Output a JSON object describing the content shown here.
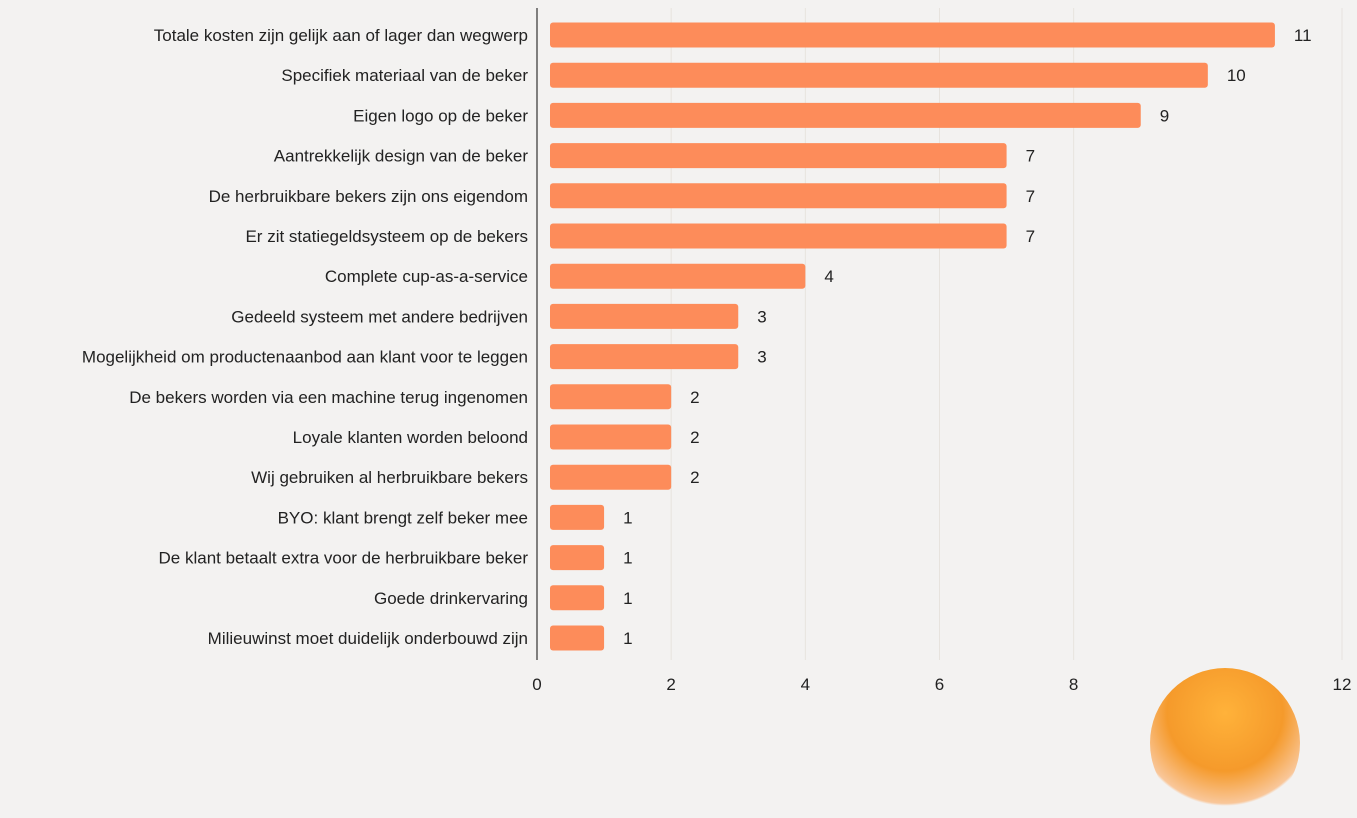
{
  "chart_data": {
    "type": "bar",
    "orientation": "horizontal",
    "categories": [
      "Totale kosten zijn gelijk aan of lager dan wegwerp",
      "Specifiek materiaal van de beker",
      "Eigen logo op de beker",
      "Aantrekkelijk design van de beker",
      "De herbruikbare bekers zijn ons eigendom",
      "Er zit statiegeldsysteem op de bekers",
      "Complete cup-as-a-service",
      "Gedeeld systeem met andere bedrijven",
      "Mogelijkheid om productenaanbod aan klant voor te leggen",
      "De bekers worden via een machine terug ingenomen",
      "Loyale klanten worden beloond",
      "Wij gebruiken al herbruikbare bekers",
      "BYO: klant brengt zelf beker mee",
      "De klant betaalt extra voor de herbruikbare beker",
      "Goede drinkervaring",
      "Milieuwinst moet duidelijk onderbouwd zijn"
    ],
    "values": [
      11,
      10,
      9,
      7,
      7,
      7,
      4,
      3,
      3,
      2,
      2,
      2,
      1,
      1,
      1,
      1
    ],
    "xlim": [
      0,
      12
    ],
    "xticks": [
      0,
      2,
      4,
      6,
      8,
      12
    ],
    "grid": true,
    "bar_color": "#fd8c5a"
  },
  "colors": {
    "background": "#f3f2f1",
    "bar": "#fd8c5a",
    "grid": "#e7e3de",
    "text": "#222222"
  }
}
